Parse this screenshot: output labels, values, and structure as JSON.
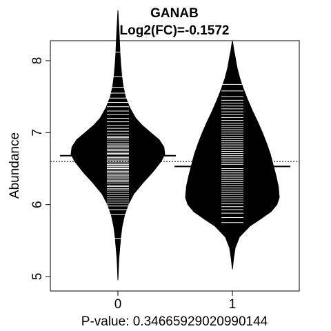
{
  "chart_data": {
    "type": "beanplot",
    "title": "GANAB",
    "subtitle": "Log2(FC)=-0.1572",
    "ylabel": "Abundance",
    "xlabel": "P-value: 0.34665929020990144",
    "categories": [
      "0",
      "1"
    ],
    "ylim": [
      4.85,
      8.7
    ],
    "yticks": [
      5,
      6,
      7,
      8
    ],
    "grid": false,
    "overall_mean": 6.6,
    "colors": {
      "bean": "#000000",
      "points": "#ffffff",
      "axis": "#000000",
      "background": "#ffffff"
    },
    "beans": [
      {
        "category": "0",
        "mean": 6.68,
        "density": [
          [
            4.95,
            0.0
          ],
          [
            5.1,
            0.01
          ],
          [
            5.25,
            0.02
          ],
          [
            5.4,
            0.04
          ],
          [
            5.55,
            0.06
          ],
          [
            5.7,
            0.09
          ],
          [
            5.85,
            0.14
          ],
          [
            6.0,
            0.22
          ],
          [
            6.15,
            0.34
          ],
          [
            6.3,
            0.53
          ],
          [
            6.45,
            0.74
          ],
          [
            6.6,
            0.92
          ],
          [
            6.7,
            1.0
          ],
          [
            6.8,
            0.98
          ],
          [
            6.9,
            0.88
          ],
          [
            7.0,
            0.7
          ],
          [
            7.1,
            0.52
          ],
          [
            7.2,
            0.38
          ],
          [
            7.35,
            0.25
          ],
          [
            7.5,
            0.16
          ],
          [
            7.65,
            0.11
          ],
          [
            7.8,
            0.08
          ],
          [
            7.95,
            0.06
          ],
          [
            8.1,
            0.045
          ],
          [
            8.25,
            0.035
          ],
          [
            8.4,
            0.025
          ],
          [
            8.55,
            0.012
          ],
          [
            8.7,
            0.0
          ]
        ],
        "points": [
          5.53,
          5.86,
          5.93,
          5.98,
          6.02,
          6.05,
          6.08,
          6.11,
          6.14,
          6.17,
          6.2,
          6.22,
          6.25,
          6.27,
          6.3,
          6.32,
          6.34,
          6.36,
          6.38,
          6.4,
          6.42,
          6.44,
          6.46,
          6.48,
          6.5,
          6.51,
          6.53,
          6.55,
          6.56,
          6.58,
          6.6,
          6.61,
          6.63,
          6.65,
          6.66,
          6.68,
          6.7,
          6.71,
          6.73,
          6.75,
          6.77,
          6.79,
          6.81,
          6.83,
          6.85,
          6.88,
          6.91,
          6.93,
          6.95,
          6.98,
          7.02,
          7.06,
          7.1,
          7.15,
          7.2,
          7.25,
          7.3,
          7.36,
          7.42,
          7.48,
          7.55,
          7.63,
          7.78,
          8.12
        ]
      },
      {
        "category": "1",
        "mean": 6.53,
        "density": [
          [
            5.1,
            0.0
          ],
          [
            5.25,
            0.025
          ],
          [
            5.4,
            0.06
          ],
          [
            5.55,
            0.15
          ],
          [
            5.7,
            0.37
          ],
          [
            5.8,
            0.6
          ],
          [
            5.9,
            0.82
          ],
          [
            6.0,
            0.95
          ],
          [
            6.1,
            1.0
          ],
          [
            6.25,
            0.98
          ],
          [
            6.4,
            0.93
          ],
          [
            6.55,
            0.87
          ],
          [
            6.7,
            0.81
          ],
          [
            6.85,
            0.73
          ],
          [
            7.0,
            0.64
          ],
          [
            7.15,
            0.54
          ],
          [
            7.3,
            0.43
          ],
          [
            7.45,
            0.33
          ],
          [
            7.6,
            0.24
          ],
          [
            7.75,
            0.16
          ],
          [
            7.9,
            0.1
          ],
          [
            8.05,
            0.06
          ],
          [
            8.15,
            0.03
          ],
          [
            8.28,
            0.0
          ]
        ],
        "points": [
          5.75,
          5.82,
          5.88,
          5.93,
          5.97,
          6.01,
          6.05,
          6.08,
          6.11,
          6.14,
          6.17,
          6.2,
          6.23,
          6.26,
          6.29,
          6.32,
          6.35,
          6.38,
          6.41,
          6.44,
          6.47,
          6.5,
          6.53,
          6.56,
          6.59,
          6.62,
          6.65,
          6.68,
          6.71,
          6.74,
          6.77,
          6.8,
          6.83,
          6.86,
          6.89,
          6.92,
          6.95,
          6.98,
          7.01,
          7.04,
          7.07,
          7.1,
          7.13,
          7.17,
          7.21,
          7.25,
          7.29,
          7.33,
          7.37,
          7.41,
          7.45,
          7.5,
          7.58,
          7.67
        ]
      }
    ]
  }
}
